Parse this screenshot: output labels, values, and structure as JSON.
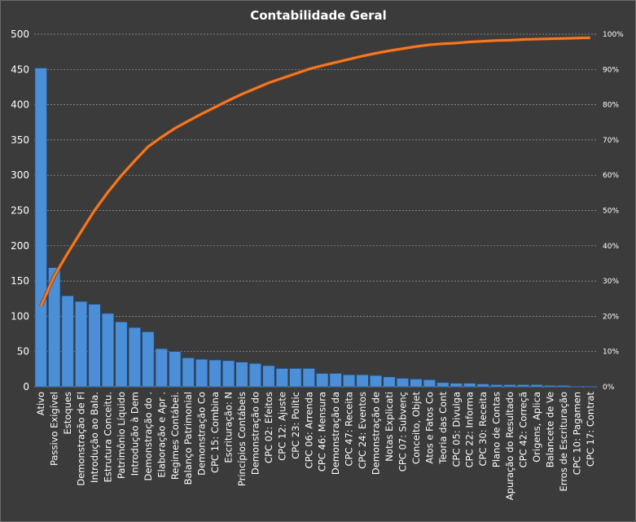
{
  "chart_data": {
    "type": "bar",
    "title": "Contabilidade  Geral",
    "xlabel": "",
    "ylabel": "",
    "ylim": [
      0,
      500
    ],
    "y_ticks": [
      "0",
      "50",
      "100",
      "150",
      "200",
      "250",
      "300",
      "350",
      "400",
      "450",
      "500"
    ],
    "y2lim": [
      0,
      100
    ],
    "y2_ticks": [
      "0%",
      "10%",
      "20%",
      "30%",
      "40%",
      "50%",
      "60%",
      "70%",
      "80%",
      "90%",
      "100%"
    ],
    "grid": true,
    "legend": "none",
    "colors": {
      "bar": "#4a8fd8",
      "line": "#f07a2a",
      "background": "#3b3b3b",
      "grid": "#a0a0a0"
    },
    "categories": [
      "Ativo",
      "Passivo Exigível",
      "Estoques",
      "Demonstração de Fl",
      "Introdução  ao Bala.",
      "Estrutura Conceitu.",
      "Patrimônio  Líquido",
      "Introdução  à Dem",
      "Demonstração do .",
      "Elaboração e Apr .",
      "Regimes Contábei.",
      "Balanço Patrimonial",
      "Demonstração Co",
      "CPC 15: Combina",
      "Escrituração: N",
      "Princípios Contábeis",
      "Demonstração do",
      "CPC 02: Efeitos",
      "CPC 12: Ajuste",
      "CPC 23: Polític",
      "CPC 06: Arrenda",
      "CPC 46: Mensura",
      "Demonstração da",
      "CPC 47: Receita",
      "CPC 24: Eventos",
      "Demonstração de",
      "Notas Explicati",
      "CPC 07: Subvenç",
      "Conceito, Objet",
      "Atos e Fatos Co",
      "Teoria das Cont",
      "CPC 05: Divulga",
      "CPC 22: Informa",
      "CPC 30: Receita",
      "Plano de Contas",
      "Apuração do Resultado",
      "CPC 42: Correçã",
      "Origens, Aplica",
      "Balancete de Ve",
      "Erros de Escrituração",
      "CPC 10: Pagamen",
      "CPC 17: Contrat"
    ],
    "series": [
      {
        "type": "bar",
        "values": [
          452,
          169,
          129,
          121,
          117,
          104,
          92,
          84,
          78,
          54,
          50,
          41,
          39,
          38,
          37,
          35,
          33,
          30,
          26,
          26,
          26,
          19,
          19,
          17,
          17,
          16,
          14,
          12,
          11,
          10,
          6,
          5,
          5,
          4,
          3,
          3,
          3,
          3,
          2,
          2,
          1,
          1
        ]
      },
      {
        "type": "line",
        "axis": "secondary",
        "values": [
          22.9,
          31.4,
          37.9,
          44.0,
          50.0,
          55.2,
          59.9,
          64.1,
          68.1,
          70.8,
          73.3,
          75.4,
          77.4,
          79.3,
          81.2,
          83.0,
          84.6,
          86.2,
          87.5,
          88.8,
          90.1,
          91.1,
          92.0,
          92.9,
          93.8,
          94.6,
          95.3,
          95.9,
          96.5,
          97.0,
          97.3,
          97.5,
          97.8,
          98.0,
          98.2,
          98.3,
          98.5,
          98.6,
          98.7,
          98.8,
          98.9,
          99.0
        ]
      }
    ]
  }
}
